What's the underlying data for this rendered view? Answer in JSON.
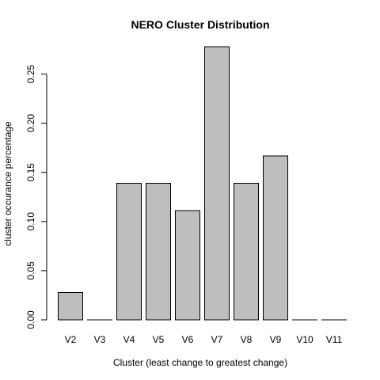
{
  "chart_data": {
    "type": "bar",
    "title": "NERO Cluster Distribution",
    "xlabel": "Cluster (least change to greatest change)",
    "ylabel": "cluster occurance percentage",
    "categories": [
      "V2",
      "V3",
      "V4",
      "V5",
      "V6",
      "V7",
      "V8",
      "V9",
      "V10",
      "V11"
    ],
    "values": [
      0.0278,
      0.0,
      0.1389,
      0.1389,
      0.1111,
      0.2778,
      0.1389,
      0.1667,
      0.0,
      0.0
    ],
    "ylim": [
      0,
      0.2778
    ],
    "yticks": [
      0.0,
      0.05,
      0.1,
      0.15,
      0.2,
      0.25
    ],
    "ytick_labels": [
      "0.00",
      "0.05",
      "0.10",
      "0.15",
      "0.20",
      "0.25"
    ],
    "grid": false,
    "bar_color": "#bebebe"
  }
}
